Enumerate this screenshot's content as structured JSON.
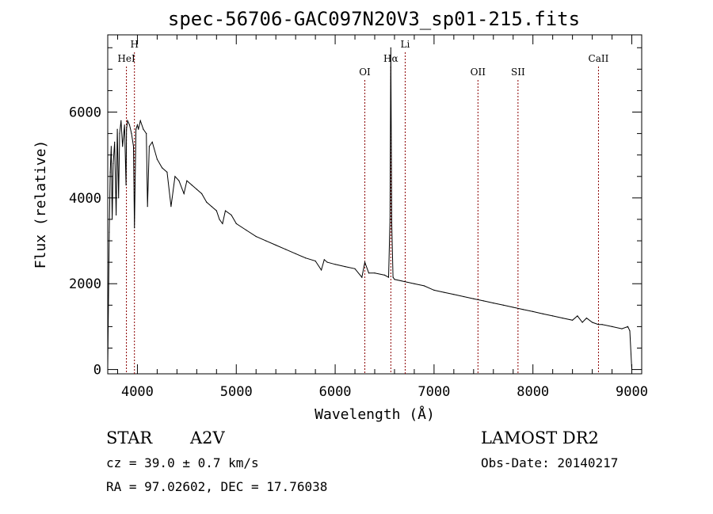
{
  "chart_data": {
    "type": "line",
    "title": "spec-56706-GAC097N20V3_sp01-215.fits",
    "xlabel": "Wavelength (Å)",
    "ylabel": "Flux (relative)",
    "xlim": [
      3700,
      9100
    ],
    "ylim": [
      -100,
      7800
    ],
    "xticks": [
      {
        "value": 4000,
        "label": "4000"
      },
      {
        "value": 5000,
        "label": "5000"
      },
      {
        "value": 6000,
        "label": "6000"
      },
      {
        "value": 7000,
        "label": "7000"
      },
      {
        "value": 8000,
        "label": "8000"
      },
      {
        "value": 9000,
        "label": "9000"
      }
    ],
    "yticks": [
      {
        "value": 0,
        "label": "0"
      },
      {
        "value": 2000,
        "label": "2000"
      },
      {
        "value": 4000,
        "label": "4000"
      },
      {
        "value": 6000,
        "label": "6000"
      }
    ],
    "grid": false,
    "series": [
      {
        "color": "#000000",
        "x": [
          3700,
          3715,
          3725,
          3735,
          3745,
          3755,
          3770,
          3785,
          3797,
          3810,
          3820,
          3835,
          3850,
          3870,
          3885,
          3890,
          3900,
          3920,
          3940,
          3960,
          3970,
          3985,
          4000,
          4010,
          4030,
          4060,
          4090,
          4102,
          4120,
          4150,
          4200,
          4250,
          4300,
          4340,
          4380,
          4420,
          4471,
          4500,
          4550,
          4600,
          4650,
          4700,
          4750,
          4800,
          4830,
          4861,
          4890,
          4950,
          5000,
          5100,
          5200,
          5300,
          5400,
          5500,
          5600,
          5700,
          5800,
          5860,
          5890,
          5920,
          6000,
          6100,
          6200,
          6270,
          6300,
          6340,
          6400,
          6500,
          6540,
          6555,
          6563,
          6572,
          6585,
          6600,
          6700,
          6800,
          6900,
          7000,
          7100,
          7200,
          7300,
          7400,
          7500,
          7600,
          7700,
          7800,
          7900,
          8000,
          8100,
          8200,
          8300,
          8400,
          8450,
          8500,
          8542,
          8600,
          8662,
          8700,
          8800,
          8900,
          8960,
          8980,
          9000
        ],
        "y": [
          50,
          3200,
          4600,
          5200,
          3500,
          4800,
          5300,
          3600,
          5600,
          4000,
          5500,
          5800,
          5200,
          5700,
          4300,
          5600,
          5800,
          5700,
          5500,
          5200,
          3300,
          5600,
          5700,
          5600,
          5800,
          5600,
          5500,
          3800,
          5200,
          5300,
          4900,
          4700,
          4600,
          3800,
          4500,
          4400,
          4100,
          4400,
          4300,
          4200,
          4100,
          3900,
          3800,
          3700,
          3500,
          3400,
          3700,
          3600,
          3400,
          3250,
          3100,
          3000,
          2900,
          2800,
          2700,
          2600,
          2530,
          2320,
          2560,
          2500,
          2450,
          2400,
          2350,
          2150,
          2500,
          2250,
          2250,
          2200,
          2150,
          3500,
          7500,
          3400,
          2150,
          2100,
          2050,
          2000,
          1950,
          1850,
          1800,
          1750,
          1700,
          1650,
          1600,
          1550,
          1500,
          1450,
          1400,
          1350,
          1300,
          1250,
          1200,
          1150,
          1250,
          1100,
          1200,
          1100,
          1050,
          1050,
          1000,
          950,
          1000,
          900,
          0
        ]
      }
    ],
    "lines": [
      {
        "label": "HeI",
        "x": 3889,
        "label_row": 2
      },
      {
        "label": "H",
        "x": 3970,
        "label_row": 1
      },
      {
        "label": "OI",
        "x": 6300,
        "label_row": 3
      },
      {
        "label": "Hα",
        "x": 6563,
        "label_row": 2
      },
      {
        "label": "Li",
        "x": 6708,
        "label_row": 1
      },
      {
        "label": "OII",
        "x": 7444,
        "label_row": 3
      },
      {
        "label": "SII",
        "x": 7849,
        "label_row": 3
      },
      {
        "label": "CaII",
        "x": 8663,
        "label_row": 2
      }
    ],
    "line_color": "#8b0000",
    "legend": "none"
  },
  "info": {
    "object_type": "STAR",
    "spectral_class": "A2V",
    "survey": "LAMOST DR2",
    "cz": "cz = 39.0 ± 0.7 km/s",
    "obs_date": "Obs-Date: 20140217",
    "coords": "RA =  97.02602, DEC =  17.76038"
  }
}
